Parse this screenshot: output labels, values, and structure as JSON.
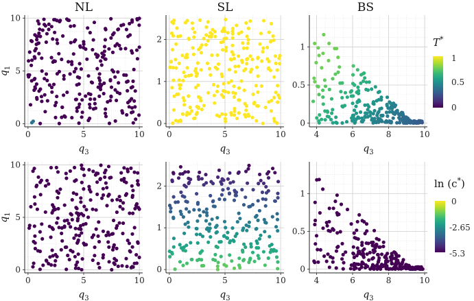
{
  "figure": {
    "column_titles": [
      "NL",
      "SL",
      "BS"
    ],
    "x_label": "q",
    "x_label_sub": "3",
    "y_label": "q",
    "y_label_sub": "1"
  },
  "colorbars": [
    {
      "title": "T",
      "title_sup": "*",
      "ticks": [
        {
          "v": 1,
          "t": "1"
        },
        {
          "v": 0.5,
          "t": "0.5"
        },
        {
          "v": 0,
          "t": "0"
        }
      ],
      "range": [
        0,
        1
      ]
    },
    {
      "title": "ln (c",
      "title_sup": "*",
      "title_end": ")",
      "ticks": [
        {
          "v": 0,
          "t": "0"
        },
        {
          "v": -2.65,
          "t": "-2.65"
        },
        {
          "v": -5.3,
          "t": "-5.3"
        }
      ],
      "range": [
        -5.3,
        0
      ]
    }
  ],
  "colors": {
    "viridis": [
      "#440154",
      "#482878",
      "#3e4989",
      "#31688e",
      "#26828e",
      "#1f9e89",
      "#35b779",
      "#6ece58",
      "#b5de2b",
      "#fde725"
    ],
    "grid": "#e3e3e3",
    "axis": "#222222"
  },
  "chart_data": [
    {
      "id": "top-NL",
      "type": "scatter",
      "title": "NL",
      "xlabel": "q3",
      "ylabel": "q1",
      "xlim": [
        -0.3,
        10.3
      ],
      "ylim": [
        -0.3,
        10.3
      ],
      "xticks": [
        0,
        5,
        10
      ],
      "yticks": [
        0,
        5,
        10
      ],
      "color_var": "T*",
      "n_points": 260,
      "distribution": "uniform over [0,10]x[0,10]",
      "color_rule": "T* = 0 everywhere except a few points near q3~0 with q1<1.5 (up to ~0.4)"
    },
    {
      "id": "top-SL",
      "type": "scatter",
      "title": "SL",
      "xlabel": "q3",
      "ylabel": "",
      "xlim": [
        -0.3,
        10.3
      ],
      "ylim": [
        -0.08,
        2.58
      ],
      "xticks": [
        0,
        5,
        10
      ],
      "yticks": [
        0,
        1,
        2
      ],
      "color_var": "T*",
      "n_points": 260,
      "distribution": "uniform over [0,10]x[0,2.5]",
      "color_rule": "T* = 1 everywhere"
    },
    {
      "id": "top-BS",
      "type": "scatter",
      "title": "BS",
      "xlabel": "q3",
      "ylabel": "",
      "xlim": [
        3.6,
        10.15
      ],
      "ylim": [
        -0.05,
        1.42
      ],
      "xticks": [
        4,
        6,
        8,
        10
      ],
      "yticks": [
        0,
        0.5,
        1
      ],
      "color_var": "T*",
      "n_points": 260,
      "distribution": "region q1 < 1.4 - (q3-3.8)*0.25, densest near q3~8-10, q1~0-0.4",
      "color_rule": "T* decreases from ~0.75 at q3~4, q1~1.3 to ~0.3 at q3~10, q1~0"
    },
    {
      "id": "bottom-NL",
      "type": "scatter",
      "title": "",
      "xlabel": "q3",
      "ylabel": "q1",
      "xlim": [
        -0.3,
        10.3
      ],
      "ylim": [
        -0.3,
        10.3
      ],
      "xticks": [
        0,
        5,
        10
      ],
      "yticks": [
        0,
        5,
        10
      ],
      "color_var": "ln(c*)",
      "n_points": 260,
      "distribution": "uniform over [0,10]x[0,10]",
      "color_rule": "ln(c*) ~ -5.3 everywhere"
    },
    {
      "id": "bottom-SL",
      "type": "scatter",
      "title": "",
      "xlabel": "q3",
      "ylabel": "",
      "xlim": [
        -0.3,
        10.3
      ],
      "ylim": [
        -0.08,
        2.58
      ],
      "xticks": [
        0,
        5,
        10
      ],
      "yticks": [
        0,
        1,
        2
      ],
      "color_var": "ln(c*)",
      "n_points": 260,
      "distribution": "uniform over [0,10]x[0,2.5]",
      "color_rule": "ln(c*) rises from ~-4.9 at q1=2.5 to ~-1.1 at q1=0"
    },
    {
      "id": "bottom-BS",
      "type": "scatter",
      "title": "",
      "xlabel": "q3",
      "ylabel": "",
      "xlim": [
        3.6,
        10.15
      ],
      "ylim": [
        -0.05,
        1.42
      ],
      "xticks": [
        4,
        6,
        8,
        10
      ],
      "yticks": [
        0,
        0.5,
        1
      ],
      "color_var": "ln(c*)",
      "n_points": 260,
      "distribution": "region q1 < 1.4 - (q3-3.8)*0.25",
      "color_rule": "ln(c*) ~ -5.3 everywhere"
    }
  ]
}
